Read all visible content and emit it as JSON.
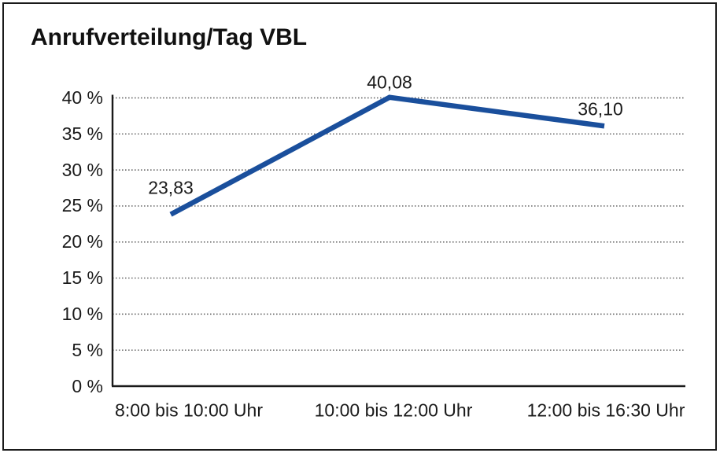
{
  "window": {
    "background": "#ffffff",
    "border_color": "#1a1a1a"
  },
  "chart_data": {
    "type": "line",
    "title": "Anrufverteilung/Tag VBL",
    "categories": [
      "8:00 bis 10:00 Uhr",
      "10:00 bis 12:00 Uhr",
      "12:00 bis 16:30 Uhr"
    ],
    "series": [
      {
        "values": [
          23.83,
          40.08,
          36.1
        ],
        "point_labels": [
          "23,83",
          "40,08",
          "36,10"
        ],
        "color": "#1A4F9C"
      }
    ],
    "xlabel": "",
    "ylabel": "",
    "ylim": [
      0,
      40
    ],
    "y_ticks": [
      0,
      5,
      10,
      15,
      20,
      25,
      30,
      35,
      40
    ],
    "y_tick_suffix": " %",
    "grid": "horizontal-dotted",
    "legend_position": "none",
    "axis_color": "#1a1a1a",
    "gridline_color": "#5f5f5f",
    "text_color": "#1a1a1a"
  }
}
